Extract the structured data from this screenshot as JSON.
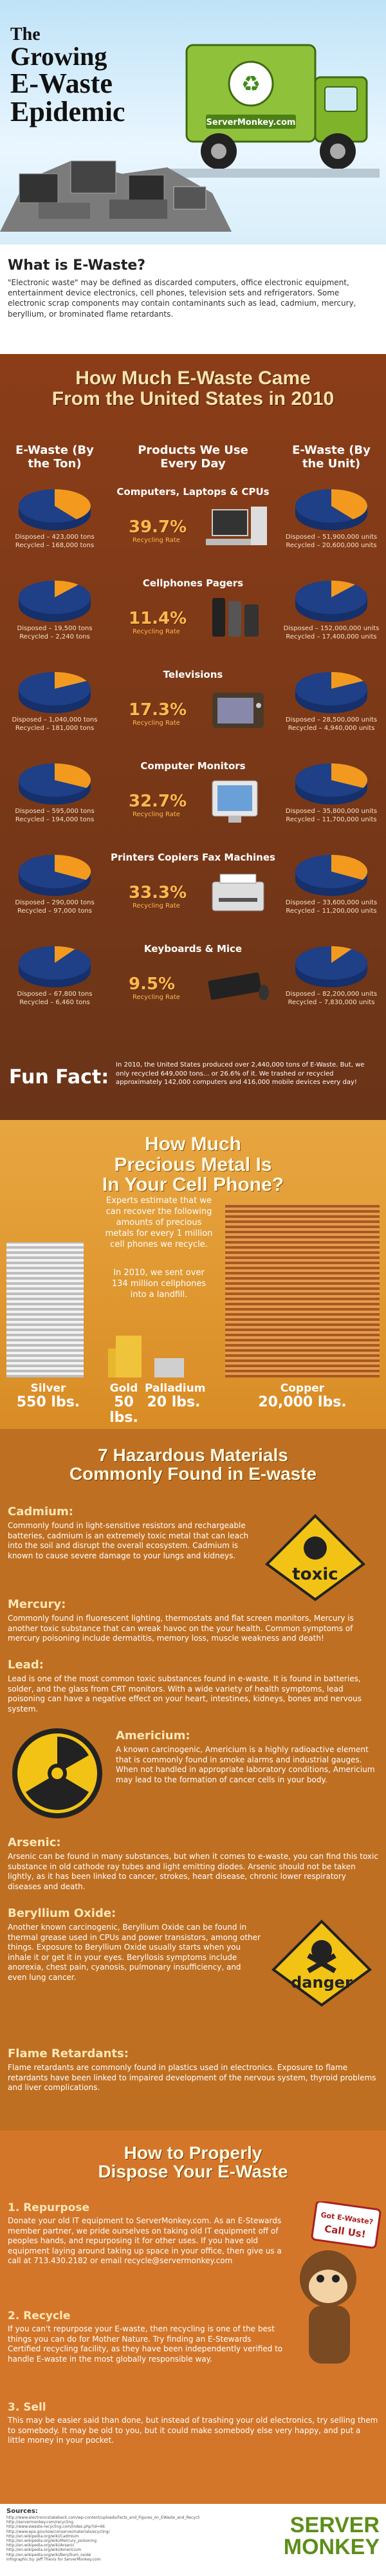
{
  "header": {
    "title_line1": "The",
    "title_line2": "Growing",
    "title_line3": "E-Waste",
    "title_line4": "Epidemic",
    "truck_logo": "ServerMonkey.com"
  },
  "what": {
    "heading": "What is E-Waste?",
    "body": "\"Electronic waste\" may be defined as discarded computers, office electronic equipment, entertainment device electronics, cell phones, television sets and refrigerators. Some electronic scrap components may contain contaminants such as lead, cadmium, mercury, beryllium, or brominated flame retardants."
  },
  "usage": {
    "title_line1": "How Much E-Waste Came",
    "title_line2": "From the United States in 2010",
    "col_left": "E-Waste (By the Ton)",
    "col_mid": "Products We Use Every Day",
    "col_right": "E-Waste (By the Unit)",
    "rate_label": "Recycling Rate",
    "rows": [
      {
        "device": "Computers, Laptops & CPUs",
        "rate": "39.7%",
        "recycled_share": 0.397,
        "ton_disposed": "Disposed – 423,000 tons",
        "ton_recycled": "Recycled – 168,000 tons",
        "unit_disposed": "Disposed – 51,900,000 units",
        "unit_recycled": "Recycled – 20,600,000 units"
      },
      {
        "device": "Cellphones Pagers",
        "rate": "11.4%",
        "recycled_share": 0.114,
        "ton_disposed": "Disposed – 19,500 tons",
        "ton_recycled": "Recycled – 2,240 tons",
        "unit_disposed": "Disposed – 152,000,000 units",
        "unit_recycled": "Recycled – 17,400,000 units"
      },
      {
        "device": "Televisions",
        "rate": "17.3%",
        "recycled_share": 0.173,
        "ton_disposed": "Disposed – 1,040,000 tons",
        "ton_recycled": "Recycled – 181,000 tons",
        "unit_disposed": "Disposed – 28,500,000 units",
        "unit_recycled": "Recycled – 4,940,000 units"
      },
      {
        "device": "Computer Monitors",
        "rate": "32.7%",
        "recycled_share": 0.327,
        "ton_disposed": "Disposed – 595,000 tons",
        "ton_recycled": "Recycled – 194,000 tons",
        "unit_disposed": "Disposed – 35,800,000 units",
        "unit_recycled": "Recycled – 11,700,000 units"
      },
      {
        "device": "Printers Copiers Fax Machines",
        "rate": "33.3%",
        "recycled_share": 0.333,
        "ton_disposed": "Disposed – 290,000 tons",
        "ton_recycled": "Recycled – 97,000 tons",
        "unit_disposed": "Disposed – 33,600,000 units",
        "unit_recycled": "Recycled – 11,200,000 units"
      },
      {
        "device": "Keyboards & Mice",
        "rate": "9.5%",
        "recycled_share": 0.095,
        "ton_disposed": "Disposed – 67,800 tons",
        "ton_recycled": "Recycled – 6,460 tons",
        "unit_disposed": "Disposed – 82,200,000 units",
        "unit_recycled": "Recycled – 7,830,000 units"
      }
    ],
    "funfact_title": "Fun Fact:",
    "funfact_body": "In 2010, the United States produced over 2,440,000 tons of E-Waste. But, we only recycled 649,000 tons... or 26.6% of it. We trashed or recycled approximately 142,000 computers and 416,000 mobile devices every day!"
  },
  "metal": {
    "title_line1": "How Much",
    "title_line2": "Precious Metal Is",
    "title_line3": "In Your Cell Phone?",
    "para1": "Experts estimate that we can recover the following amounts of precious metals for every 1 million cell phones we recycle.",
    "para2": "In 2010, we sent over 134 million cellphones into a landfill.",
    "items": [
      {
        "name": "Silver",
        "amount": "550 lbs."
      },
      {
        "name": "Gold",
        "amount": "50 lbs."
      },
      {
        "name": "Palladium",
        "amount": "20 lbs."
      },
      {
        "name": "Copper",
        "amount": "20,000 lbs."
      }
    ]
  },
  "hazard": {
    "title_line1": "7 Hazardous Materials",
    "title_line2": "Commonly Found in E-waste",
    "toxic_sign": "toxic",
    "danger_sign": "danger",
    "items": [
      {
        "name": "Cadmium:",
        "text": "Commonly found in light-sensitive resistors and rechargeable batteries, cadmium is an extremely toxic metal that can leach into the soil and disrupt the overall ecosystem. Cadmium is known to cause severe damage to your lungs and kidneys."
      },
      {
        "name": "Mercury:",
        "text": "Commonly found in fluorescent lighting, thermostats and flat screen monitors, Mercury is another toxic substance that can wreak havoc on the your health. Common symptoms of mercury poisoning include dermatitis, memory loss, muscle weakness and death!"
      },
      {
        "name": "Lead:",
        "text": "Lead is one of the most common toxic substances found in e-waste. It is found in batteries, solder, and the glass from CRT monitors. With a wide variety of health symptoms, lead poisoning can have a negative effect on your heart, intestines, kidneys, bones and nervous system."
      },
      {
        "name": "Americium:",
        "text": "A known carcinogenic, Americium is a highly radioactive element that is commonly found in smoke alarms and industrial gauges. When not handled in appropriate laboratory conditions, Americium may lead to the formation of cancer cells in your body."
      },
      {
        "name": "Arsenic:",
        "text": "Arsenic can be found in many substances, but when it comes to e-waste, you can find this toxic substance in old cathode ray tubes and light emitting diodes. Arsenic should not be taken lightly, as it has been linked to cancer, strokes, heart disease, chronic lower respiratory diseases and death."
      },
      {
        "name": "Beryllium Oxide:",
        "text": "Another known carcinogenic, Beryllium Oxide can be found in thermal grease used in CPUs and power transistors, among other things. Exposure to Beryllium Oxide usually starts when you inhale it or get it in your eyes. Beryllosis symptoms include anorexia, chest pain, cyanosis, pulmonary insufficiency, and even lung cancer."
      },
      {
        "name": "Flame Retardants:",
        "text": "Flame retardants are commonly found in plastics used in electronics. Exposure to flame retardants have been linked to impaired development of the nervous system, thyroid problems and liver complications."
      }
    ]
  },
  "dispose": {
    "title_line1": "How to Properly",
    "title_line2": "Dispose Your E-Waste",
    "sign_line1": "Got E-Waste?",
    "sign_line2": "Call Us!",
    "steps": [
      {
        "name": "1. Repurpose",
        "text": "Donate your old IT equipment to ServerMonkey.com. As an E-Stewards member partner, we pride ourselves on taking old IT equipment off of peoples hands, and repurposing it for other uses. If you have old equipment laying around taking up space in your office, then give us a call at 713.430.2182 or email recycle@servermonkey.com"
      },
      {
        "name": "2. Recycle",
        "text": "If you can't repurpose your E-waste, then recycling is one of the best things you can do for Mother Nature. Try finding an E-Stewards Certified recycling facility, as they have been independently verified to handle E-waste in the most globally responsible way."
      },
      {
        "name": "3. Sell",
        "text": "This may be easier said than done, but instead of trashing your old electronics, try selling them to somebody. It may be old to you, but it could make somebody else very happy, and put a little money in your pocket."
      }
    ]
  },
  "sources": {
    "heading": "Sources:",
    "lines": [
      "http://www.electronicstakeback.com/wp-content/uploads/Facts_and_Figures_on_EWaste_and_Recycling.pdf",
      "http://servermonkey.com/recycling",
      "http://www.ewaste-recycling.com/index.php?id=66",
      "http://www.epa.gov/osw/conserve/materials/ecycling/",
      "http://en.wikipedia.org/wiki/Cadmium",
      "http://en.wikipedia.org/wiki/Mercury_poisoning",
      "http://en.wikipedia.org/wiki/Arsenic",
      "http://en.wikipedia.org/wiki/Americium",
      "http://en.wikipedia.org/wiki/Beryllium_oxide"
    ],
    "credit": "Infographic by: Jeff Thevis for ServerMonkey.com",
    "logo_line1": "SERVER",
    "logo_line2": "MONKEY"
  },
  "colors": {
    "pie_disposed": "#1f3f86",
    "pie_recycled": "#f39a1e",
    "rate": "#ffb84d",
    "brand_green": "#5d8e1a"
  }
}
